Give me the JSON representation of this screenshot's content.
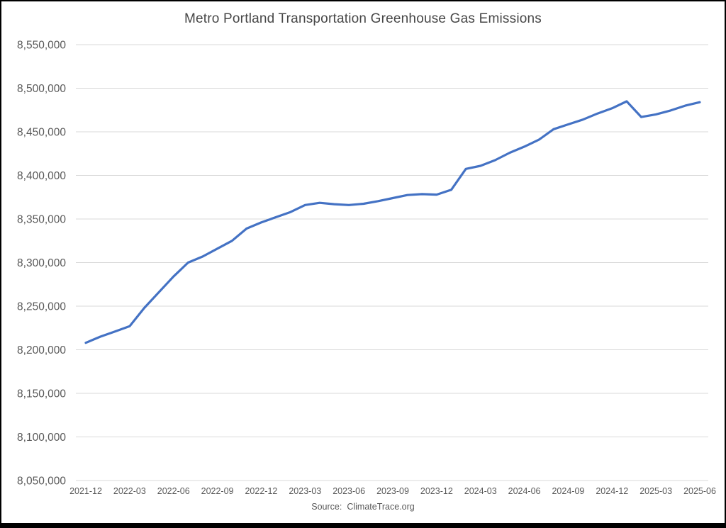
{
  "chart_data": {
    "type": "line",
    "title": "Metro Portland Transportation Greenhouse Gas Emissions",
    "xlabel": "",
    "ylabel": "",
    "x": [
      "2021-12",
      "2022-01",
      "2022-02",
      "2022-03",
      "2022-04",
      "2022-05",
      "2022-06",
      "2022-07",
      "2022-08",
      "2022-09",
      "2022-10",
      "2022-11",
      "2022-12",
      "2023-01",
      "2023-02",
      "2023-03",
      "2023-04",
      "2023-05",
      "2023-06",
      "2023-07",
      "2023-08",
      "2023-09",
      "2023-10",
      "2023-11",
      "2023-12",
      "2024-01",
      "2024-02",
      "2024-03",
      "2024-04",
      "2024-05",
      "2024-06",
      "2024-07",
      "2024-08",
      "2024-09",
      "2024-10",
      "2024-11",
      "2024-12",
      "2025-01",
      "2025-02",
      "2025-03",
      "2025-04",
      "2025-05",
      "2025-06"
    ],
    "values": [
      8208000,
      8215000,
      8221000,
      8227000,
      8248000,
      8266000,
      8284000,
      8300000,
      8307000,
      8316000,
      8325000,
      8339000,
      8346000,
      8352000,
      8358000,
      8366000,
      8368500,
      8367000,
      8366000,
      8367500,
      8370500,
      8374000,
      8377500,
      8378500,
      8378000,
      8383500,
      8407500,
      8411000,
      8417500,
      8426000,
      8433000,
      8441000,
      8453000,
      8458500,
      8464000,
      8471000,
      8477000,
      8485000,
      8467000,
      8470000,
      8474500,
      8480000,
      8484000
    ],
    "x_tick_labels": [
      "2021-12",
      "2022-03",
      "2022-06",
      "2022-09",
      "2022-12",
      "2023-03",
      "2023-06",
      "2023-09",
      "2023-12",
      "2024-03",
      "2024-06",
      "2024-09",
      "2024-12",
      "2025-03",
      "2025-06"
    ],
    "ylim": [
      8050000,
      8550000
    ],
    "ytick_step": 50000,
    "grid": "horizontal gridlines on",
    "legend": "none",
    "series_name": "Metro Portland transportation GHG emissions",
    "line_color": "#4472C4",
    "gridline_color": "#D9D9D9",
    "axis_label_color": "#595959",
    "title_color": "#474747"
  },
  "footer": {
    "source_label": "Source:",
    "source_value": "ClimateTrace.org"
  }
}
